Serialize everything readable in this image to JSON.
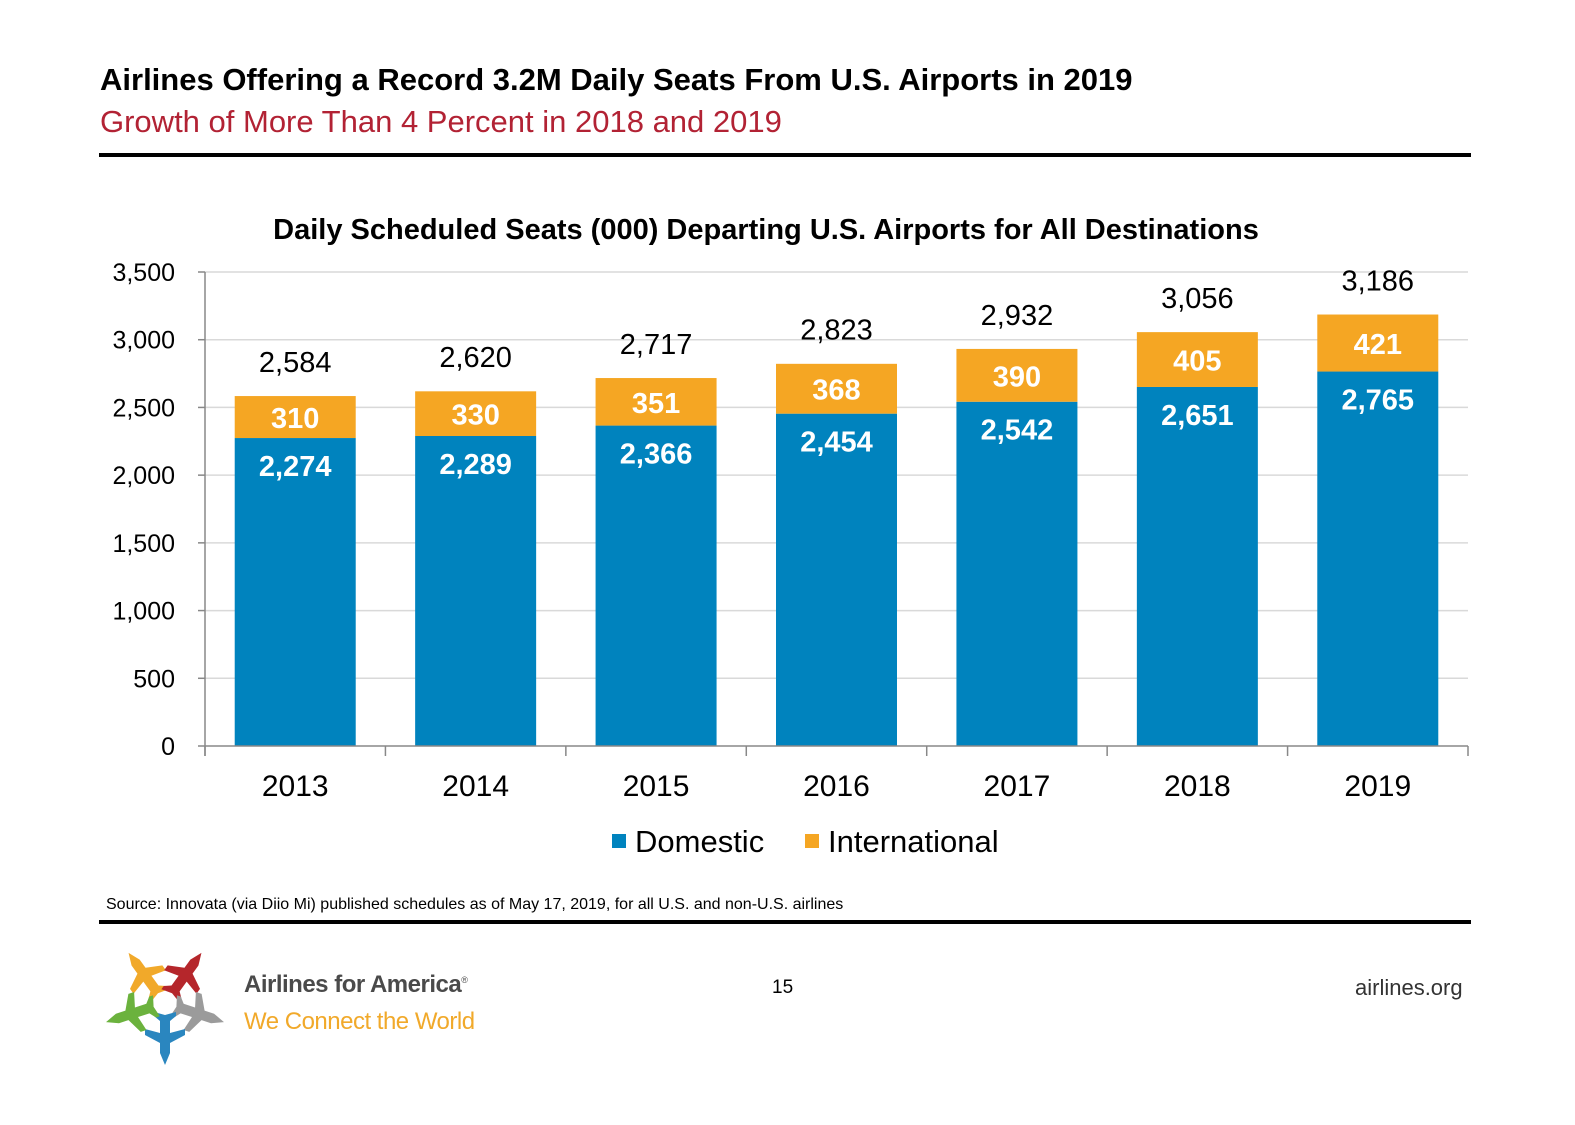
{
  "header": {
    "title": "Airlines Offering a Record 3.2M Daily Seats From U.S. Airports in 2019",
    "subtitle": "Growth of More Than 4 Percent in 2018 and 2019"
  },
  "chart_data": {
    "type": "bar",
    "stacked": true,
    "title": "Daily Scheduled Seats (000) Departing U.S. Airports for All Destinations",
    "xlabel": "",
    "ylabel": "",
    "ylim": [
      0,
      3500
    ],
    "yticks": [
      0,
      500,
      1000,
      1500,
      2000,
      2500,
      3000,
      3500
    ],
    "ytick_labels": [
      "0",
      "500",
      "1,000",
      "1,500",
      "2,000",
      "2,500",
      "3,000",
      "3,500"
    ],
    "grid": true,
    "legend": "bottom",
    "categories": [
      "2013",
      "2014",
      "2015",
      "2016",
      "2017",
      "2018",
      "2019"
    ],
    "series": [
      {
        "name": "Domestic",
        "color": "#0083be",
        "values": [
          2274,
          2289,
          2366,
          2454,
          2542,
          2651,
          2765
        ],
        "labels": [
          "2,274",
          "2,289",
          "2,366",
          "2,454",
          "2,542",
          "2,651",
          "2,765"
        ]
      },
      {
        "name": "International",
        "color": "#f5a623",
        "values": [
          310,
          330,
          351,
          368,
          390,
          405,
          421
        ],
        "labels": [
          "310",
          "330",
          "351",
          "368",
          "390",
          "405",
          "421"
        ]
      }
    ],
    "totals": [
      2584,
      2620,
      2717,
      2823,
      2932,
      3056,
      3186
    ],
    "total_labels": [
      "2,584",
      "2,620",
      "2,717",
      "2,823",
      "2,932",
      "3,056",
      "3,186"
    ]
  },
  "footer": {
    "source": "Source: Innovata (via Diio Mi) published schedules as of May 17, 2019, for all U.S. and non-U.S. airlines",
    "page_number": "15",
    "site": "airlines.org",
    "logo_name": "Airlines for America",
    "logo_mark": "®",
    "logo_tagline": "We Connect the World"
  }
}
